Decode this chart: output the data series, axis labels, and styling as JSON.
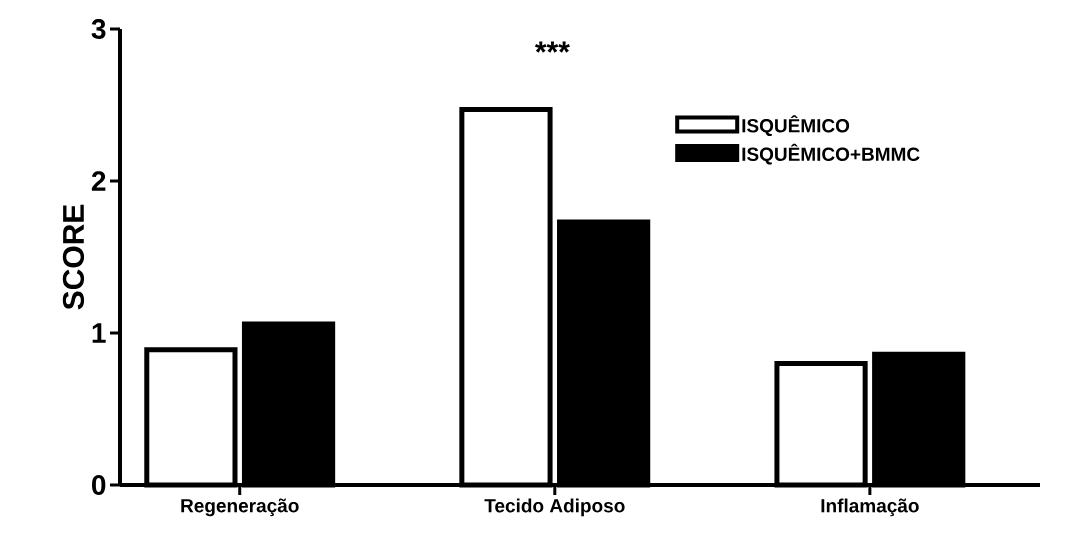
{
  "chart_data": {
    "type": "bar",
    "ylabel": "SCORE",
    "categories": [
      "Regeneração",
      "Tecido Adiposo",
      "Inflamação"
    ],
    "series": [
      {
        "name": "ISQUÊMICO",
        "color": "#ffffff",
        "values": [
          0.89,
          2.47,
          0.8
        ]
      },
      {
        "name": "ISQUÊMICO+BMMC",
        "color": "#000000",
        "values": [
          1.06,
          1.73,
          0.86
        ]
      }
    ],
    "ylim": [
      0,
      3
    ],
    "yticks": [
      0,
      1,
      2,
      3
    ],
    "legend": "right",
    "annotations": [
      "***"
    ]
  }
}
